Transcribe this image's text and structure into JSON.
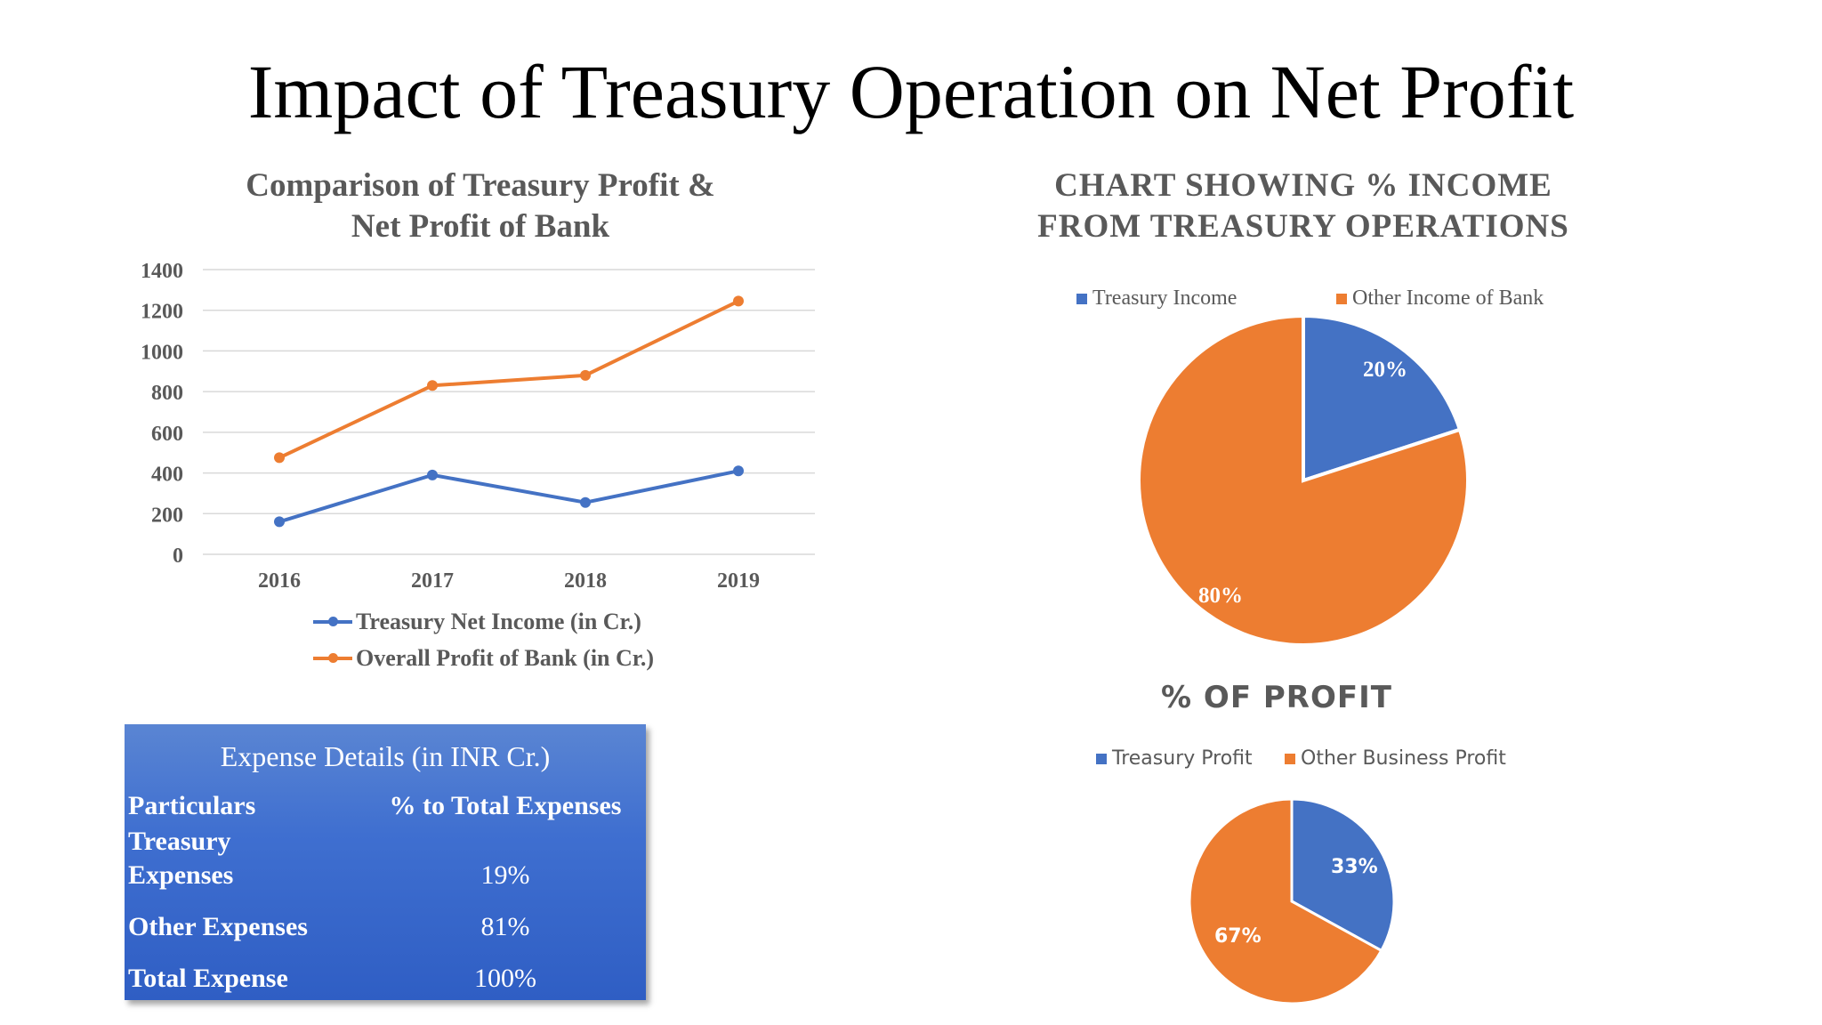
{
  "slide_title": "Impact of Treasury Operation on Net Profit",
  "chart_data": [
    {
      "type": "line",
      "title": "Comparison of Treasury Profit & Net Profit of Bank",
      "title_lines": [
        "Comparison of Treasury Profit &",
        "Net Profit of Bank"
      ],
      "categories": [
        "2016",
        "2017",
        "2018",
        "2019"
      ],
      "yticks": [
        "0",
        "200",
        "400",
        "600",
        "800",
        "1000",
        "1200",
        "1400"
      ],
      "ylim": [
        0,
        1400
      ],
      "grid": true,
      "legend_position": "bottom",
      "series": [
        {
          "name": "Treasury Net Income (in Cr.)",
          "values": [
            160,
            390,
            255,
            410
          ],
          "color": "#4472c4"
        },
        {
          "name": "Overall Profit of Bank (in Cr.)",
          "values": [
            475,
            830,
            880,
            1245
          ],
          "color": "#ed7d31"
        }
      ]
    },
    {
      "type": "pie",
      "title": "CHART SHOWING % INCOME FROM TREASURY OPERATIONS",
      "title_lines": [
        "CHART SHOWING % INCOME",
        "FROM TREASURY OPERATIONS"
      ],
      "legend_position": "top",
      "slices": [
        {
          "name": "Treasury Income",
          "value": 20,
          "label": "20%",
          "color": "#4472c4"
        },
        {
          "name": "Other Income of Bank",
          "value": 80,
          "label": "80%",
          "color": "#ed7d31"
        }
      ]
    },
    {
      "type": "pie",
      "title": "% OF PROFIT",
      "legend_position": "top",
      "slices": [
        {
          "name": "Treasury Profit",
          "value": 33,
          "label": "33%",
          "color": "#4472c4"
        },
        {
          "name": "Other Business Profit",
          "value": 67,
          "label": "67%",
          "color": "#ed7d31"
        }
      ]
    },
    {
      "type": "table",
      "title": "Expense Details (in INR Cr.)",
      "columns": [
        "Particulars",
        "% to Total Expenses"
      ],
      "rows": [
        {
          "particular_lines": [
            "Treasury",
            "Expenses"
          ],
          "value": "19%"
        },
        {
          "particular_lines": [
            "Other Expenses"
          ],
          "value": "81%"
        },
        {
          "particular_lines": [
            "Total Expense"
          ],
          "value": "100%"
        }
      ]
    }
  ]
}
